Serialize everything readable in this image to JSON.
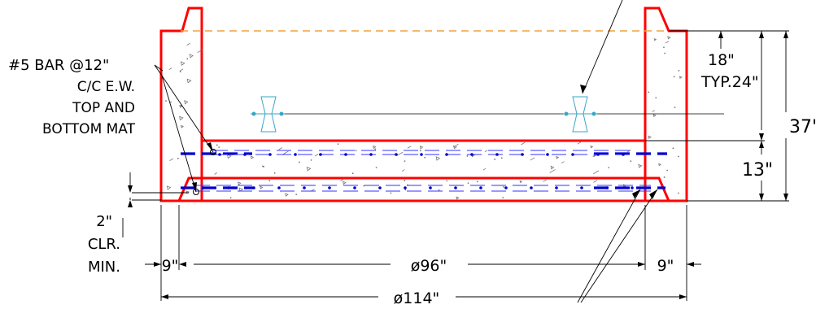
{
  "drawing": {
    "colors": {
      "wall_outline": "#ff0000",
      "rebar": "#0000cc",
      "rebar_dashed_light": "#3333ff",
      "water_line": "#f0a040",
      "hardware": "#3aa6c4",
      "dimension": "#000000",
      "aggregate": "#777777"
    },
    "callouts": {
      "rebar_line1": "#5 BAR @12\"",
      "rebar_line2": "C/C E.W.",
      "rebar_line3": "TOP AND",
      "rebar_line4": "BOTTOM MAT",
      "clearance_line1": "2\"",
      "clearance_line2": "CLR.",
      "clearance_line3": "MIN."
    },
    "dimensions": {
      "top_offset": "18\"",
      "typical": "TYP.24\"",
      "overall_height": "37'",
      "slab_thickness": "13\"",
      "left_wall": "9\"",
      "inner_diameter": "ø96\"",
      "right_wall": "9\"",
      "outer_diameter": "ø114\""
    }
  }
}
